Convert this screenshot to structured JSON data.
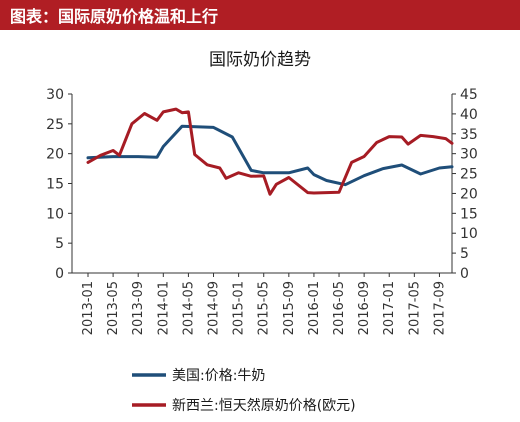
{
  "banner": {
    "title": "图表：国际原奶价格温和上行",
    "color": "#b01e24"
  },
  "chart_data": {
    "type": "line",
    "title": "国际奶价趋势",
    "x_ticks": [
      "2013-01",
      "2013-05",
      "2013-09",
      "2014-01",
      "2014-05",
      "2014-09",
      "2015-01",
      "2015-05",
      "2015-09",
      "2016-01",
      "2016-05",
      "2016-09",
      "2017-01",
      "2017-05",
      "2017-09"
    ],
    "y_left": {
      "ticks": [
        "0",
        "5",
        "10",
        "15",
        "20",
        "25",
        "30"
      ],
      "range": [
        0,
        30
      ]
    },
    "y_right": {
      "ticks": [
        "0",
        "5",
        "10",
        "15",
        "20",
        "25",
        "30",
        "35",
        "40",
        "45"
      ],
      "range": [
        0,
        45
      ]
    },
    "grid": false,
    "legend_position": "bottom-left",
    "series": [
      {
        "name": "美国:价格:牛奶",
        "axis": "left",
        "color": "#1f4e79",
        "x": [
          "2013-01",
          "2013-05",
          "2013-09",
          "2013-12",
          "2014-01",
          "2014-04",
          "2014-09",
          "2014-12",
          "2015-03",
          "2015-05",
          "2015-09",
          "2015-12",
          "2016-01",
          "2016-03",
          "2016-06",
          "2016-09",
          "2016-12",
          "2017-03",
          "2017-06",
          "2017-09",
          "2017-11"
        ],
        "values": [
          19.3,
          19.5,
          19.5,
          19.4,
          21.2,
          24.6,
          24.4,
          22.8,
          17.2,
          16.8,
          16.8,
          17.6,
          16.5,
          15.5,
          14.8,
          16.3,
          17.5,
          18.1,
          16.6,
          17.6,
          17.8
        ]
      },
      {
        "name": "新西兰:恒天然原奶价格(欧元)",
        "axis": "right",
        "color": "#a61c24",
        "x": [
          "2013-01",
          "2013-03",
          "2013-05",
          "2013-06",
          "2013-08",
          "2013-10",
          "2013-12",
          "2014-01",
          "2014-03",
          "2014-04",
          "2014-05",
          "2014-06",
          "2014-08",
          "2014-10",
          "2014-11",
          "2015-01",
          "2015-03",
          "2015-05",
          "2015-06",
          "2015-07",
          "2015-09",
          "2015-12",
          "2016-01",
          "2016-03",
          "2016-05",
          "2016-07",
          "2016-09",
          "2016-11",
          "2017-01",
          "2017-03",
          "2017-04",
          "2017-06",
          "2017-08",
          "2017-10",
          "2017-11"
        ],
        "values": [
          27.8,
          29.6,
          30.8,
          29.6,
          37.5,
          40.1,
          38.4,
          40.5,
          41.2,
          40.3,
          40.5,
          29.8,
          27.2,
          26.4,
          23.8,
          25.2,
          24.3,
          24.4,
          19.8,
          22.3,
          24.0,
          20.2,
          20.1,
          20.2,
          20.3,
          27.8,
          29.3,
          32.8,
          34.3,
          34.2,
          32.4,
          34.6,
          34.3,
          33.8,
          32.6
        ]
      }
    ]
  }
}
